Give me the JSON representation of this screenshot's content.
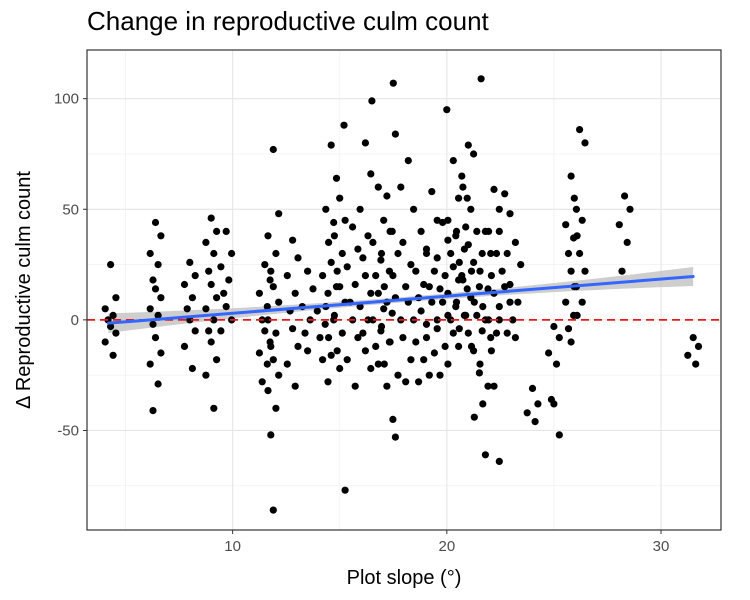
{
  "chart_data": {
    "type": "scatter",
    "title": "Change in reproductive culm count",
    "xlabel": "Plot slope (°)",
    "ylabel": "Δ Reproductive culm count",
    "xlim": [
      3.2,
      32.8
    ],
    "ylim": [
      -95,
      122
    ],
    "x_ticks": [
      10,
      20,
      30
    ],
    "y_ticks": [
      -50,
      0,
      50,
      100
    ],
    "grid": true,
    "reference_line": {
      "y": 0,
      "color": "#e41a1c",
      "style": "dashed"
    },
    "trend": {
      "method": "linear",
      "x": [
        4.2,
        31.5
      ],
      "y": [
        -1.5,
        19.6
      ],
      "color": "#3366ff",
      "band_color": "#bdbdbd"
    },
    "point_color": "#000000",
    "clusters": [
      {
        "x": 4.3,
        "values": [
          25,
          10,
          5,
          2,
          0,
          -3,
          -6,
          -10,
          -16
        ]
      },
      {
        "x": 6.4,
        "values": [
          44,
          38,
          30,
          25,
          18,
          14,
          10,
          5,
          2,
          -2,
          -8,
          -15,
          -20,
          -29,
          -41
        ]
      },
      {
        "x": 8.0,
        "values": [
          26,
          20,
          16,
          10,
          5,
          0,
          -5,
          -12,
          -22
        ]
      },
      {
        "x": 9.0,
        "values": [
          46,
          40,
          35,
          30,
          22,
          16,
          10,
          5,
          0,
          -5,
          -10,
          -18,
          -25,
          -40
        ]
      },
      {
        "x": 9.7,
        "values": [
          40,
          30,
          24,
          18,
          12,
          6,
          0,
          -5
        ]
      },
      {
        "x": 11.5,
        "values": [
          25,
          18,
          12,
          6,
          0,
          -5,
          -10,
          -15,
          -20,
          -28
        ]
      },
      {
        "x": 11.9,
        "values": [
          77,
          48,
          38,
          30,
          22,
          15,
          8,
          0,
          -6,
          -12,
          -18,
          -25,
          -32,
          -40,
          -52,
          -86
        ]
      },
      {
        "x": 12.8,
        "values": [
          36,
          28,
          20,
          12,
          4,
          -4,
          -12,
          -20,
          -30
        ]
      },
      {
        "x": 13.5,
        "values": [
          22,
          14,
          6,
          0,
          -6,
          -14
        ]
      },
      {
        "x": 14.2,
        "values": [
          20,
          12,
          4,
          -2,
          -8,
          -18,
          -28
        ]
      },
      {
        "x": 14.6,
        "values": [
          79,
          64,
          50,
          44,
          35,
          26,
          15,
          6,
          0,
          -8,
          -16
        ]
      },
      {
        "x": 15.0,
        "values": [
          55,
          45,
          38,
          30,
          22,
          15,
          8,
          2,
          -6,
          -14,
          -22,
          -77
        ]
      },
      {
        "x": 15.6,
        "values": [
          42,
          32,
          24,
          16,
          8,
          0,
          -8,
          -18,
          -30
        ]
      },
      {
        "x": 16.2,
        "values": [
          80,
          66,
          50,
          38,
          28,
          20,
          12,
          6,
          0,
          -6,
          -14,
          -22
        ]
      },
      {
        "x": 16.8,
        "values": [
          60,
          45,
          35,
          27,
          20,
          12,
          5,
          0,
          -5,
          -12,
          -20
        ]
      },
      {
        "x": 17.2,
        "values": [
          56,
          40,
          30,
          22,
          15,
          8,
          3,
          -3,
          -10,
          -20,
          -30
        ]
      },
      {
        "x": 17.6,
        "values": [
          84,
          60,
          40,
          30,
          20,
          10,
          0,
          -10,
          -25,
          -45,
          -53
        ]
      },
      {
        "x": 18.2,
        "values": [
          72,
          50,
          35,
          25,
          15,
          8,
          0,
          -8,
          -18,
          -28
        ]
      },
      {
        "x": 18.8,
        "values": [
          40,
          30,
          22,
          16,
          10,
          4,
          -2,
          -10,
          -18,
          -28
        ]
      },
      {
        "x": 19.3,
        "values": [
          58,
          45,
          32,
          22,
          15,
          8,
          0,
          -8,
          -15,
          -25
        ]
      },
      {
        "x": 19.8,
        "values": [
          44,
          36,
          28,
          20,
          14,
          8,
          2,
          -4,
          -12,
          -25
        ]
      },
      {
        "x": 20.3,
        "values": [
          72,
          55,
          45,
          38,
          30,
          24,
          18,
          12,
          6,
          0,
          -6,
          -12,
          -20
        ]
      },
      {
        "x": 20.7,
        "values": [
          65,
          55,
          40,
          32,
          26,
          20,
          14,
          8,
          2,
          -4
        ]
      },
      {
        "x": 21.0,
        "values": [
          79,
          75,
          60,
          50,
          42,
          34,
          26,
          18,
          10,
          2,
          -6,
          -14
        ]
      },
      {
        "x": 21.4,
        "values": [
          40,
          30,
          22,
          15,
          8,
          2,
          -5,
          -12,
          -24,
          -44
        ]
      },
      {
        "x": 21.8,
        "values": [
          40,
          30,
          22,
          14,
          6,
          0,
          -8,
          -20,
          -30,
          -38,
          -61
        ]
      },
      {
        "x": 22.2,
        "values": [
          59,
          50,
          40,
          30,
          20,
          12,
          6,
          0,
          -6,
          -14,
          -30,
          -64
        ]
      },
      {
        "x": 22.7,
        "values": [
          57,
          48,
          40,
          30,
          22,
          15,
          8,
          0,
          -6
        ]
      },
      {
        "x": 23.2,
        "values": [
          35,
          25,
          16,
          8,
          0,
          -8
        ]
      },
      {
        "x": 24.0,
        "values": [
          -31,
          -38,
          -42,
          -46
        ]
      },
      {
        "x": 25.0,
        "values": [
          -3,
          -8,
          -15,
          -20,
          -36,
          -38,
          -52
        ]
      },
      {
        "x": 25.8,
        "values": [
          65,
          50,
          43,
          37,
          30,
          22,
          15,
          8,
          2,
          -4,
          -10
        ]
      },
      {
        "x": 26.2,
        "values": [
          86,
          80,
          55,
          45,
          38,
          30,
          22,
          15,
          8,
          2
        ]
      },
      {
        "x": 28.3,
        "values": [
          56,
          50,
          43,
          35,
          22
        ]
      },
      {
        "x": 31.5,
        "values": [
          -8,
          -12,
          -16,
          -20
        ]
      }
    ],
    "extra_points": [
      {
        "x": 17.5,
        "y": 107
      },
      {
        "x": 21.6,
        "y": 109
      },
      {
        "x": 20.0,
        "y": 95
      },
      {
        "x": 16.5,
        "y": 99
      },
      {
        "x": 15.2,
        "y": 88
      }
    ]
  }
}
